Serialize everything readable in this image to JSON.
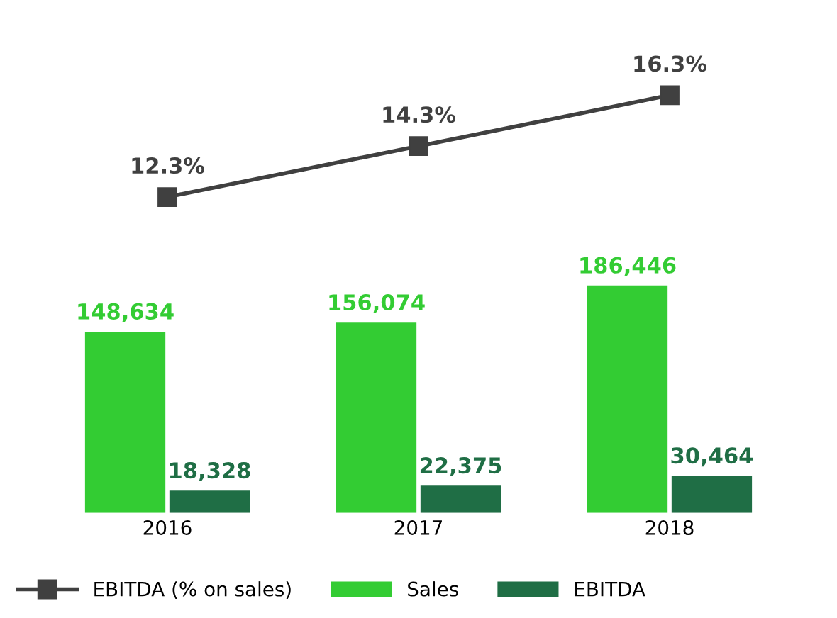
{
  "chart_data": [
    {
      "type": "line",
      "categories": [
        "2016",
        "2017",
        "2018"
      ],
      "data_labels": true,
      "tick_labels": false,
      "grid": false,
      "marker": "square",
      "series": [
        {
          "name": "EBITDA (% on sales)",
          "color": "#404040",
          "values": [
            12.3,
            14.3,
            16.3
          ],
          "value_labels": [
            "12.3%",
            "14.3%",
            "16.3%"
          ]
        }
      ]
    },
    {
      "type": "bar",
      "categories": [
        "2016",
        "2017",
        "2018"
      ],
      "data_labels": true,
      "legend": "bottom",
      "tick_labels": "x",
      "grid": false,
      "series": [
        {
          "name": "Sales",
          "color": "#33cc33",
          "values": [
            148634,
            156074,
            186446
          ],
          "value_labels": [
            "148,634",
            "156,074",
            "186,446"
          ]
        },
        {
          "name": "EBITDA",
          "color": "#1f6e45",
          "values": [
            18328,
            22375,
            30464
          ],
          "value_labels": [
            "18,328",
            "22,375",
            "30,464"
          ]
        }
      ]
    }
  ]
}
